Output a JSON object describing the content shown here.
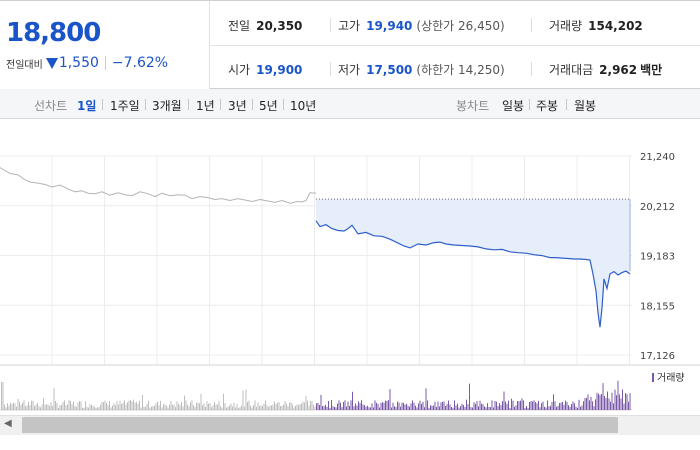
{
  "quote": {
    "current_price": "18,800",
    "change_label": "전일대비",
    "change_amount": "1,550",
    "change_percent": "−7.62%"
  },
  "stats": {
    "prev_close_label": "전일",
    "prev_close": "20,350",
    "high_label": "고가",
    "high": "19,940",
    "upper_limit": "(상한가 26,450)",
    "volume_label": "거래량",
    "volume": "154,202",
    "open_label": "시가",
    "open": "19,900",
    "low_label": "저가",
    "low": "17,500",
    "lower_limit": "(하한가 14,250)",
    "amount_label": "거래대금",
    "amount": "2,962",
    "amount_unit": "백만"
  },
  "line_periods": {
    "label": "선차트",
    "options": [
      "1일",
      "1주일",
      "3개월",
      "1년",
      "3년",
      "5년",
      "10년"
    ],
    "active": "1일"
  },
  "candle_periods": {
    "label": "봉차트",
    "options": [
      "일봉",
      "주봉",
      "월봉"
    ]
  },
  "colors": {
    "accent_blue": "#1a54c9",
    "line_blue": "#2e5fc9",
    "fill_blue": "#e6eefb",
    "prev_day_gray": "#b4b4b4",
    "volume_purple": "#7a5aa8",
    "volume_gray": "#bdbdbd"
  },
  "chart_data": {
    "type": "line",
    "y_ticks": [
      "21,240",
      "20,212",
      "19,183",
      "18,155",
      "17,126"
    ],
    "ylim": [
      17126,
      21240
    ],
    "reference_price": 20350,
    "volume_legend": "거래량",
    "prev_day_series": {
      "x": [
        0,
        4,
        10,
        18,
        24,
        30,
        38,
        45,
        52,
        60,
        68,
        75,
        82,
        88,
        95,
        102,
        110,
        118,
        125,
        132,
        140,
        148,
        155,
        162,
        170,
        178,
        185,
        192,
        200,
        208,
        215,
        222,
        230,
        238,
        245,
        252,
        260,
        268,
        275,
        282,
        290,
        297,
        302,
        306,
        310,
        316
      ],
      "y": [
        21000,
        20950,
        20880,
        20850,
        20760,
        20700,
        20680,
        20650,
        20600,
        20640,
        20560,
        20500,
        20520,
        20470,
        20460,
        20500,
        20430,
        20480,
        20440,
        20420,
        20500,
        20460,
        20400,
        20470,
        20420,
        20440,
        20430,
        20360,
        20400,
        20380,
        20340,
        20360,
        20320,
        20360,
        20330,
        20300,
        20340,
        20310,
        20280,
        20320,
        20260,
        20300,
        20290,
        20320,
        20480,
        20470
      ]
    },
    "today_series": {
      "x": [
        316,
        320,
        326,
        332,
        338,
        344,
        348,
        352,
        358,
        366,
        374,
        382,
        390,
        398,
        404,
        410,
        418,
        426,
        434,
        440,
        446,
        454,
        462,
        470,
        478,
        486,
        494,
        502,
        510,
        518,
        526,
        534,
        542,
        550,
        556,
        562,
        568,
        574,
        580,
        586,
        590,
        593,
        596,
        598,
        600,
        602,
        604,
        607,
        610,
        614,
        618,
        622,
        626,
        630
      ],
      "y": [
        19900,
        19780,
        19820,
        19740,
        19700,
        19690,
        19740,
        19810,
        19630,
        19660,
        19590,
        19580,
        19520,
        19440,
        19380,
        19340,
        19420,
        19400,
        19450,
        19460,
        19420,
        19400,
        19390,
        19380,
        19360,
        19320,
        19300,
        19310,
        19260,
        19240,
        19230,
        19200,
        19180,
        19140,
        19140,
        19130,
        19120,
        19110,
        19110,
        19100,
        19090,
        18800,
        18450,
        18000,
        17700,
        18100,
        18700,
        18500,
        18800,
        18850,
        18780,
        18830,
        18860,
        18800
      ]
    }
  }
}
